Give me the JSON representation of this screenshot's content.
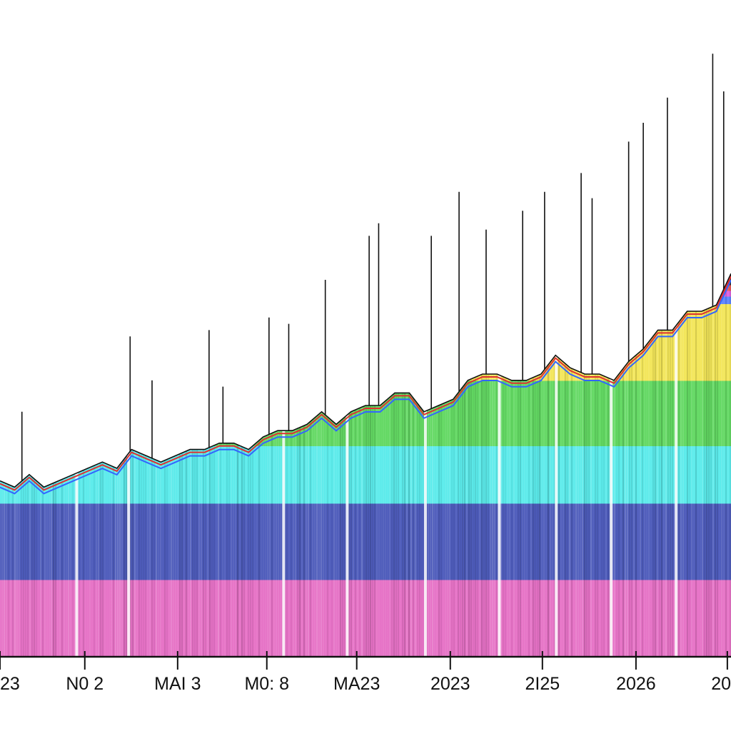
{
  "chart_data": {
    "type": "area",
    "title": "",
    "xlabel": "",
    "ylabel": "",
    "grid": false,
    "legend": "none",
    "x_range": [
      0,
      100
    ],
    "ylim": [
      0,
      100
    ],
    "tick_labels": [
      "23",
      "N0 2",
      "MAI 3",
      "M0: 8",
      "MA23",
      "2023",
      "2I25",
      "2026",
      "20"
    ],
    "tick_positions": [
      0,
      11.6,
      24.3,
      36.5,
      48.8,
      61.6,
      74.2,
      87.0,
      99.5
    ],
    "x": [
      0,
      2,
      4,
      6,
      8,
      10,
      12,
      14,
      16,
      18,
      20,
      22,
      24,
      26,
      28,
      30,
      32,
      34,
      36,
      38,
      40,
      42,
      44,
      46,
      48,
      50,
      52,
      54,
      56,
      58,
      60,
      62,
      64,
      66,
      68,
      70,
      72,
      74,
      76,
      78,
      80,
      82,
      84,
      86,
      88,
      90,
      92,
      94,
      96,
      98,
      100
    ],
    "envelope": [
      28,
      27,
      29,
      27,
      28,
      29,
      30,
      31,
      30,
      33,
      32,
      31,
      32,
      33,
      33,
      34,
      34,
      33,
      35,
      36,
      36,
      37,
      39,
      37,
      39,
      40,
      40,
      42,
      42,
      39,
      40,
      41,
      44,
      45,
      45,
      44,
      44,
      45,
      48,
      46,
      45,
      45,
      44,
      47,
      49,
      52,
      52,
      55,
      55,
      56,
      61
    ],
    "bands": [
      {
        "name": "black",
        "color": "#111111",
        "fraction_top": 1.0
      },
      {
        "name": "red",
        "color": "#e03030",
        "fraction_top": 0.97
      },
      {
        "name": "magenta",
        "color": "#d63bd6",
        "fraction_top": 0.955
      },
      {
        "name": "blue",
        "color": "#3366ff",
        "fraction_top": 0.94
      },
      {
        "name": "yellow",
        "color": "#f0e030",
        "fraction_top": 0.92
      },
      {
        "name": "green",
        "color": "#3ccf3c",
        "fraction_top": 0.72
      },
      {
        "name": "cyan",
        "color": "#33e6e6",
        "fraction_top": 0.55
      },
      {
        "name": "dark-blue",
        "color": "#2233aa",
        "fraction_top": 0.4
      },
      {
        "name": "pink",
        "color": "#e04fb8",
        "fraction_top": 0.2
      }
    ],
    "spikes": [
      {
        "x": 3,
        "y": 39
      },
      {
        "x": 17.8,
        "y": 51
      },
      {
        "x": 20.8,
        "y": 44
      },
      {
        "x": 28.6,
        "y": 52
      },
      {
        "x": 30.5,
        "y": 43
      },
      {
        "x": 36.8,
        "y": 54
      },
      {
        "x": 39.5,
        "y": 53
      },
      {
        "x": 44.5,
        "y": 60
      },
      {
        "x": 50.5,
        "y": 67
      },
      {
        "x": 51.8,
        "y": 69
      },
      {
        "x": 59,
        "y": 67
      },
      {
        "x": 62.8,
        "y": 74
      },
      {
        "x": 66.5,
        "y": 68
      },
      {
        "x": 71.5,
        "y": 71
      },
      {
        "x": 74.5,
        "y": 74
      },
      {
        "x": 79.5,
        "y": 77
      },
      {
        "x": 81,
        "y": 73
      },
      {
        "x": 86,
        "y": 82
      },
      {
        "x": 88,
        "y": 85
      },
      {
        "x": 91.3,
        "y": 89
      },
      {
        "x": 97.5,
        "y": 96
      },
      {
        "x": 99,
        "y": 90
      }
    ],
    "gap_lines": [
      10.5,
      17.6,
      38.8,
      47.5,
      58.2,
      68.3,
      76.1,
      83.6,
      92.5
    ],
    "axis_color": "#111111"
  }
}
